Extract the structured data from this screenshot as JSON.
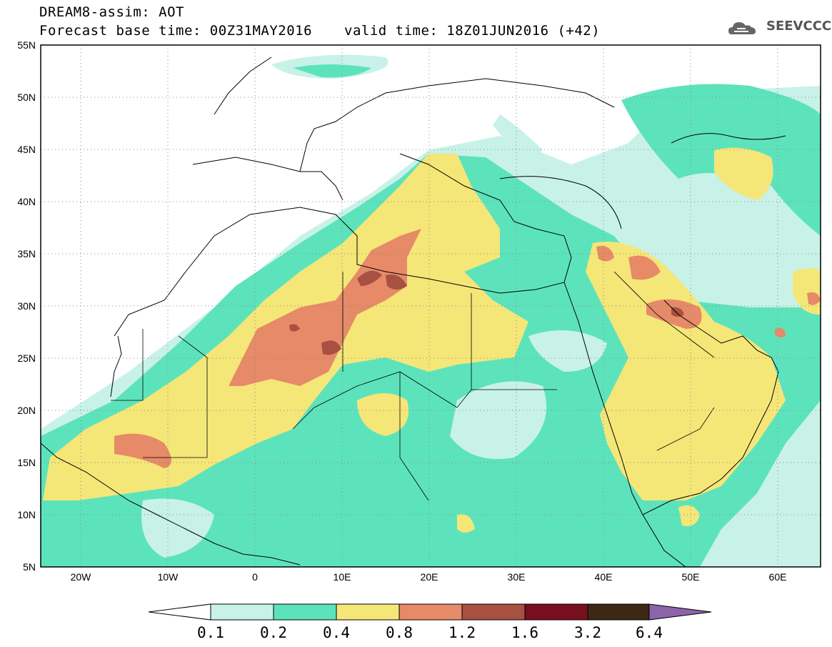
{
  "header": {
    "title": "DREAM8-assim: AOT",
    "base_time": "Forecast base time: 00Z31MAY2016",
    "valid_time": "valid time: 18Z01JUN2016 (+42)",
    "logo_text": "SEEVCCC"
  },
  "map": {
    "lat_labels": [
      "55N",
      "50N",
      "45N",
      "40N",
      "35N",
      "30N",
      "25N",
      "20N",
      "15N",
      "10N",
      "5N"
    ],
    "lon_labels": [
      "20W",
      "10W",
      "0",
      "10E",
      "20E",
      "30E",
      "40E",
      "50E",
      "60E"
    ],
    "lon_range": [
      -25,
      65
    ],
    "lat_range": [
      5,
      55
    ]
  },
  "colorbar": {
    "levels": [
      "0.1",
      "0.2",
      "0.4",
      "0.8",
      "1.2",
      "1.6",
      "3.2",
      "6.4"
    ],
    "colors": [
      "#c8f2e8",
      "#5de3bc",
      "#f5e678",
      "#e68a68",
      "#a85042",
      "#780f1e",
      "#3c2814",
      "#8c64aa"
    ]
  }
}
